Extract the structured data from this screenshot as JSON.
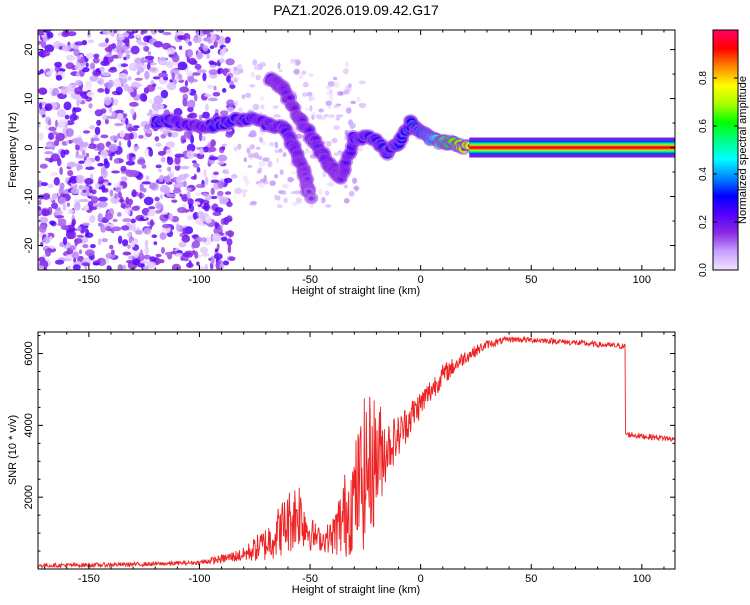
{
  "title": "PAZ1.2026.019.09.42.G17",
  "chart_data": [
    {
      "type": "heatmap",
      "id": "spectrogram",
      "title": "PAZ1.2026.019.09.42.G17",
      "xlabel": "Height of straight line (km)",
      "ylabel": "Frequency (Hz)",
      "xlim": [
        -173,
        115
      ],
      "ylim": [
        -25,
        24
      ],
      "xticks": [
        -150,
        -100,
        -50,
        0,
        50,
        100
      ],
      "yticks": [
        -20,
        -10,
        0,
        10,
        20
      ],
      "grid": false,
      "colorbar": {
        "label": "Normalized spectral amplitude",
        "range": [
          0,
          1
        ],
        "ticks": [
          "0.0",
          "0.2",
          "0.4",
          "0.6",
          "0.8"
        ],
        "colors": [
          "#f3e2ff",
          "#c7a0ff",
          "#8a2be2",
          "#5500ff",
          "#0000ff",
          "#0088ff",
          "#00ffff",
          "#00ff88",
          "#00ff00",
          "#aaff00",
          "#ffff00",
          "#ff8800",
          "#ff0000",
          "#ff0066"
        ]
      },
      "ridge": [
        {
          "x": -120,
          "y": 5,
          "amp": 0.35
        },
        {
          "x": -110,
          "y": 5.5,
          "amp": 0.32
        },
        {
          "x": -100,
          "y": 4,
          "amp": 0.3
        },
        {
          "x": -90,
          "y": 5,
          "amp": 0.35
        },
        {
          "x": -80,
          "y": 6,
          "amp": 0.33
        },
        {
          "x": -70,
          "y": 5,
          "amp": 0.3
        },
        {
          "x": -62,
          "y": 4,
          "amp": 0.3
        },
        {
          "x": -57,
          "y": 0,
          "amp": 0.25
        },
        {
          "x": -53,
          "y": -5,
          "amp": 0.2
        },
        {
          "x": -50,
          "y": -10,
          "amp": 0.15
        },
        {
          "x": -68,
          "y": 14,
          "amp": 0.25
        },
        {
          "x": -62,
          "y": 12,
          "amp": 0.22
        },
        {
          "x": -55,
          "y": 6,
          "amp": 0.2
        },
        {
          "x": -48,
          "y": 1,
          "amp": 0.25
        },
        {
          "x": -42,
          "y": -3,
          "amp": 0.25
        },
        {
          "x": -36,
          "y": -6,
          "amp": 0.2
        },
        {
          "x": -30,
          "y": 2,
          "amp": 0.3
        },
        {
          "x": -22,
          "y": 2,
          "amp": 0.35
        },
        {
          "x": -15,
          "y": -1,
          "amp": 0.35
        },
        {
          "x": -10,
          "y": 1,
          "amp": 0.35
        },
        {
          "x": -5,
          "y": 5,
          "amp": 0.4
        },
        {
          "x": 0,
          "y": 3,
          "amp": 0.45
        },
        {
          "x": 5,
          "y": 2,
          "amp": 0.55
        },
        {
          "x": 10,
          "y": 1,
          "amp": 0.75
        },
        {
          "x": 15,
          "y": 1,
          "amp": 0.85
        },
        {
          "x": 22,
          "y": 0,
          "amp": 0.95
        }
      ],
      "tone": {
        "y": 0,
        "x_start": 22,
        "x_end": 115,
        "amp": 0.95
      }
    },
    {
      "type": "line",
      "id": "snr",
      "xlabel": "Height of straight line (km)",
      "ylabel": "SNR (10 * v/v)",
      "xlim": [
        -173,
        115
      ],
      "ylim": [
        0,
        6600
      ],
      "xticks": [
        -150,
        -100,
        -50,
        0,
        50,
        100
      ],
      "yticks": [
        2000,
        4000,
        6000
      ],
      "grid": false,
      "series": [
        {
          "name": "SNR",
          "color": "#ee2222",
          "x": [
            -173,
            -150,
            -120,
            -100,
            -90,
            -80,
            -70,
            -65,
            -60,
            -55,
            -50,
            -45,
            -40,
            -35,
            -30,
            -25,
            -20,
            -15,
            -10,
            -5,
            0,
            5,
            10,
            20,
            30,
            40,
            50,
            60,
            70,
            80,
            92,
            93,
            100,
            110,
            115
          ],
          "values": [
            100,
            110,
            140,
            180,
            280,
            400,
            700,
            1000,
            1300,
            1600,
            1000,
            800,
            900,
            1400,
            2000,
            2700,
            3100,
            3400,
            3700,
            4200,
            4600,
            5000,
            5400,
            5900,
            6250,
            6400,
            6380,
            6350,
            6300,
            6250,
            6200,
            3750,
            3700,
            3650,
            3600
          ],
          "noise": [
            60,
            60,
            60,
            60,
            120,
            200,
            500,
            700,
            900,
            1000,
            500,
            300,
            500,
            1200,
            1500,
            2200,
            1800,
            800,
            600,
            500,
            400,
            350,
            300,
            200,
            120,
            80,
            80,
            80,
            80,
            80,
            80,
            80,
            80,
            80,
            80
          ]
        }
      ]
    }
  ]
}
